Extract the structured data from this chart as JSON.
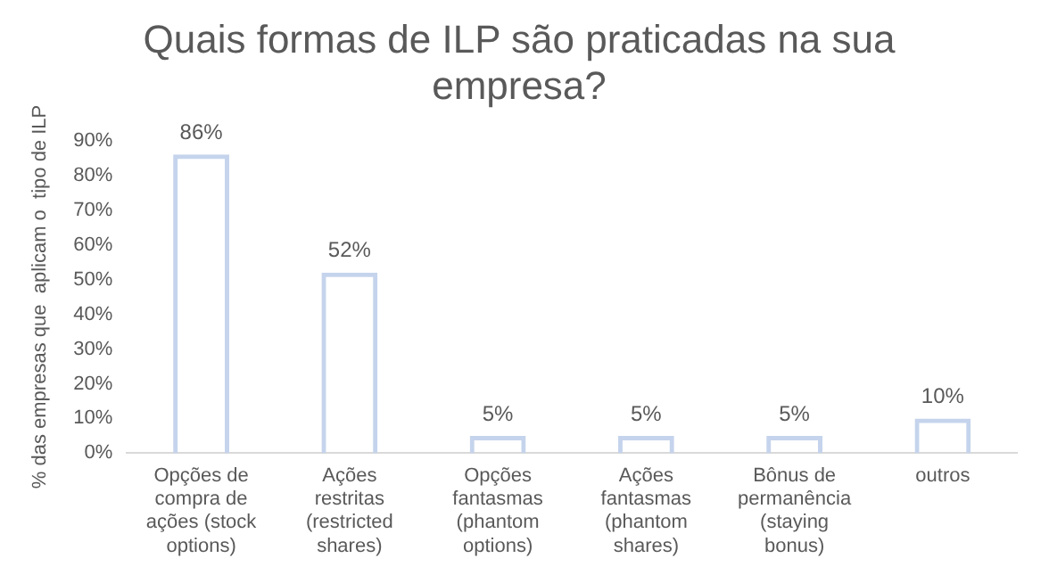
{
  "chart_data": {
    "type": "bar",
    "title": "Quais formas de ILP são praticadas na sua empresa?",
    "ylabel": "% das empresas que  aplicam o  tipo de ILP",
    "categories": [
      "Opções de compra de ações (stock options)",
      "Ações restritas (restricted shares)",
      "Opções fantasmas (phantom options)",
      "Ações fantasmas (phantom shares)",
      "Bônus de permanência (staying bonus)",
      "outros"
    ],
    "values": [
      86,
      52,
      5,
      5,
      5,
      10
    ],
    "value_labels": [
      "86%",
      "52%",
      "5%",
      "5%",
      "5%",
      "10%"
    ],
    "color": "#c5d4ec",
    "ylim": [
      0,
      90
    ],
    "yticks": [
      {
        "value": 0,
        "label": "0%"
      },
      {
        "value": 10,
        "label": "10%"
      },
      {
        "value": 20,
        "label": "20%"
      },
      {
        "value": 30,
        "label": "30%"
      },
      {
        "value": 40,
        "label": "40%"
      },
      {
        "value": 50,
        "label": "50%"
      },
      {
        "value": 60,
        "label": "60%"
      },
      {
        "value": 70,
        "label": "70%"
      },
      {
        "value": 80,
        "label": "80%"
      },
      {
        "value": 90,
        "label": "90%"
      }
    ],
    "grid": false,
    "legend": false
  }
}
